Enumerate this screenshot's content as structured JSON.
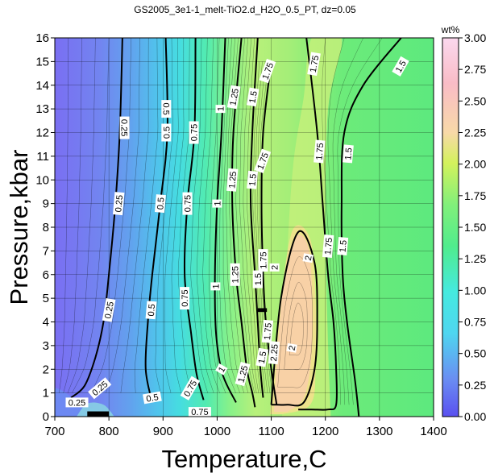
{
  "chart_data": {
    "type": "heatmap",
    "title": "GS2005_3e1-1_melt-TiO2.d_H2O_0.5_PT, dz=0.05",
    "xlabel": "Temperature,C",
    "ylabel": "Pressure,kbar",
    "xlim": [
      700,
      1400
    ],
    "ylim": [
      0,
      16
    ],
    "x_ticks": [
      "700",
      "800",
      "900",
      "1000",
      "1100",
      "1200",
      "1300",
      "1400"
    ],
    "y_ticks": [
      "0",
      "1",
      "2",
      "3",
      "4",
      "5",
      "6",
      "7",
      "8",
      "9",
      "10",
      "11",
      "12",
      "13",
      "14",
      "15",
      "16"
    ],
    "grid": true,
    "colorbar": {
      "label": "wt%",
      "range": [
        0,
        3
      ],
      "ticks": [
        "0.00",
        "0.25",
        "0.50",
        "0.75",
        "1.00",
        "1.25",
        "1.50",
        "1.75",
        "2.00",
        "2.25",
        "2.50",
        "2.75",
        "3.00"
      ]
    },
    "contour_interval": 0.05,
    "labeled_contours": [
      {
        "level": "0.25",
        "x": [
          825,
          820,
          812,
          800,
          790,
          775,
          755,
          730
        ],
        "y": [
          16,
          12,
          9,
          6,
          4,
          2.5,
          1.3,
          0.8
        ]
      },
      {
        "level": "0.5",
        "x": [
          905,
          908,
          895,
          880,
          872,
          868,
          880
        ],
        "y": [
          16,
          12,
          9,
          6,
          4,
          2,
          0.6
        ]
      },
      {
        "level": "0.75",
        "x": [
          960,
          958,
          945,
          940,
          952,
          962,
          975
        ],
        "y": [
          16,
          12,
          9,
          6,
          3.5,
          1.8,
          0.7
        ]
      },
      {
        "level": "1",
        "x": [
          1015,
          1008,
          1000,
          996,
          998,
          1010,
          1035
        ],
        "y": [
          16,
          12,
          9,
          6,
          3.5,
          1.8,
          0.6
        ]
      },
      {
        "level": "1.25",
        "x": [
          1045,
          1030,
          1028,
          1035,
          1045,
          1055,
          1065,
          1070
        ],
        "y": [
          16,
          12,
          9,
          6,
          4,
          2,
          1,
          0.4
        ]
      },
      {
        "level": "1.5 (left)",
        "x": [
          1075,
          1065,
          1062,
          1070,
          1075,
          1080,
          1085
        ],
        "y": [
          16,
          12,
          9,
          6,
          4,
          2,
          0.8
        ]
      },
      {
        "level": "1.75",
        "x": [
          1100,
          1085,
          1082,
          1085,
          1090,
          1100,
          1110
        ],
        "y": [
          15,
          12,
          9,
          6,
          4,
          2,
          0.5
        ]
      },
      {
        "level": "2",
        "x": [
          1100,
          1118,
          1150,
          1180,
          1185,
          1180,
          1160,
          1130,
          1110,
          1100
        ],
        "y": [
          0.5,
          5,
          7.8,
          6.5,
          4,
          2,
          0.6,
          0.5,
          0.5,
          0.5
        ]
      },
      {
        "level": "1.75 (right)",
        "x": [
          1165,
          1185,
          1195,
          1205,
          1215,
          1220,
          1220,
          1205,
          1175,
          1150
        ],
        "y": [
          16,
          12,
          9,
          6,
          4,
          2,
          0.5,
          0.3,
          0.3,
          0.3
        ]
      },
      {
        "level": "1.5 (right)",
        "x": [
          1340,
          1270,
          1235,
          1230,
          1232,
          1240,
          1255,
          1262
        ],
        "y": [
          16,
          14,
          12,
          9,
          6,
          4,
          1.5,
          0
        ]
      }
    ],
    "contour_labels": [
      "0.25",
      "0.25",
      "0.25",
      "0.25",
      "0.25",
      "0.5",
      "0.5",
      "0.5",
      "0.5",
      "0.5",
      "0.75",
      "0.75",
      "0.75",
      "0.75",
      "0.75",
      "1",
      "1",
      "1",
      "1",
      "1.25",
      "1.25",
      "1.25",
      "1.25",
      "1.5",
      "1.5",
      "1.5",
      "1.5",
      "1.5",
      "1.5",
      "1.5",
      "1.75",
      "1.75",
      "1.75",
      "1.75",
      "1.75",
      "1.75",
      "1.75",
      "2",
      "2",
      "2",
      "2.25"
    ]
  }
}
